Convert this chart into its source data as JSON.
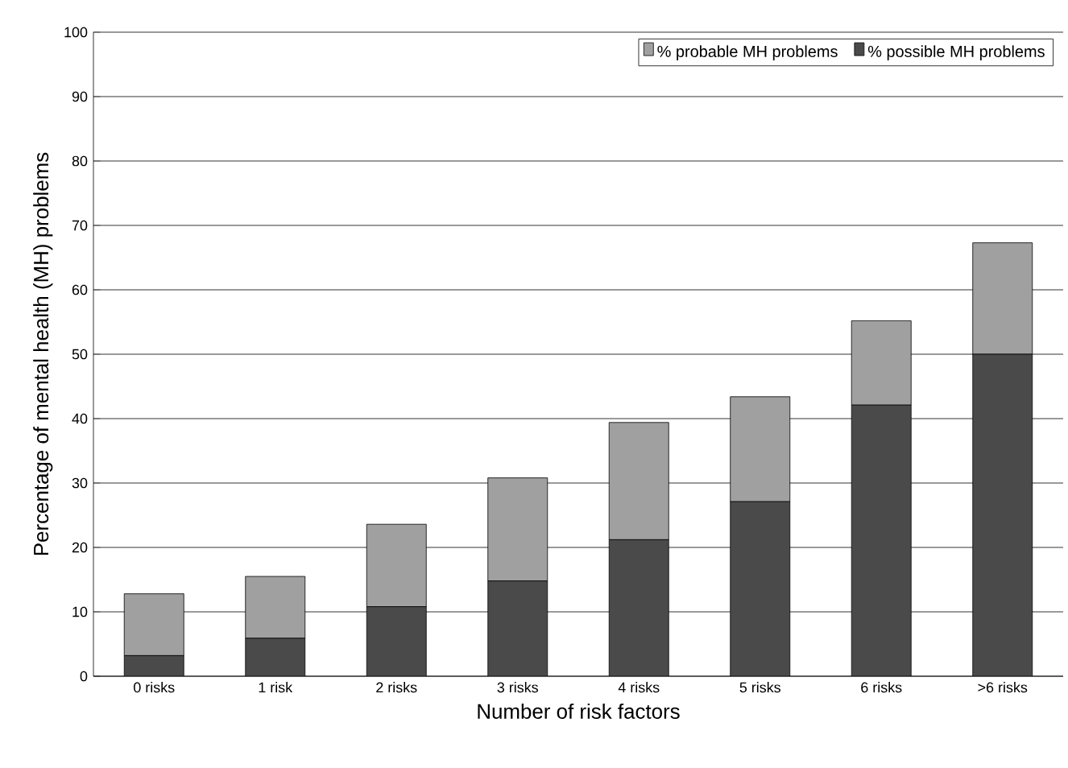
{
  "chart_data": {
    "type": "bar",
    "stacked": true,
    "xlabel": "Number of risk factors",
    "ylabel": "Percentage of mental health (MH) problems",
    "categories": [
      "0 risks",
      "1 risk",
      "2 risks",
      "3 risks",
      "4 risks",
      "5 risks",
      "6 risks",
      ">6 risks"
    ],
    "series": [
      {
        "name": "% possible MH problems",
        "color": "#4a4a4a",
        "values": [
          3.2,
          5.9,
          10.8,
          14.8,
          21.2,
          27.1,
          42.1,
          50.0
        ]
      },
      {
        "name": "% probable MH problems",
        "color": "#a0a0a0",
        "values": [
          9.6,
          9.6,
          12.8,
          16.0,
          18.2,
          16.3,
          13.1,
          17.3
        ]
      }
    ],
    "ylim": [
      0,
      100
    ],
    "yticks": [
      0,
      10,
      20,
      30,
      40,
      50,
      60,
      70,
      80,
      90,
      100
    ],
    "grid": "y",
    "legend": "top right"
  }
}
